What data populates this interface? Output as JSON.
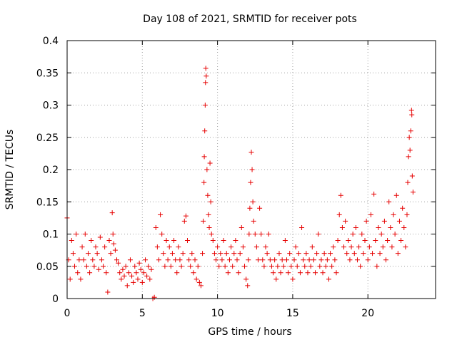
{
  "chart_data": {
    "type": "scatter",
    "title": "Day 108 of 2021, SRMTID for receiver pots",
    "xlabel": "GPS time / hours",
    "ylabel": "SRMTID / TECUs",
    "xlim": [
      0,
      24.5
    ],
    "ylim": [
      0,
      0.4
    ],
    "x_ticks": [
      0,
      5,
      10,
      15,
      20
    ],
    "x_tick_labels": [
      "0",
      "5",
      "10",
      "15",
      "20"
    ],
    "y_ticks": [
      0,
      0.05,
      0.1,
      0.15,
      0.2,
      0.25,
      0.3,
      0.35,
      0.4
    ],
    "y_tick_labels": [
      "0",
      "0.05",
      "0.1",
      "0.15",
      "0.2",
      "0.25",
      "0.3",
      "0.35",
      "0.4"
    ],
    "grid": true,
    "marker": "plus",
    "color": "#e60000",
    "series": [
      {
        "points": [
          [
            0.0,
            0.125
          ],
          [
            0.1,
            0.06
          ],
          [
            0.2,
            0.03
          ],
          [
            0.3,
            0.09
          ],
          [
            0.4,
            0.07
          ],
          [
            0.5,
            0.05
          ],
          [
            0.6,
            0.1
          ],
          [
            0.7,
            0.04
          ],
          [
            0.8,
            0.06
          ],
          [
            0.9,
            0.03
          ],
          [
            1.0,
            0.08
          ],
          [
            1.1,
            0.06
          ],
          [
            1.2,
            0.1
          ],
          [
            1.3,
            0.05
          ],
          [
            1.4,
            0.07
          ],
          [
            1.5,
            0.04
          ],
          [
            1.6,
            0.09
          ],
          [
            1.7,
            0.06
          ],
          [
            1.8,
            0.05
          ],
          [
            1.9,
            0.08
          ],
          [
            2.0,
            0.07
          ],
          [
            2.1,
            0.045
          ],
          [
            2.2,
            0.095
          ],
          [
            2.3,
            0.06
          ],
          [
            2.4,
            0.05
          ],
          [
            2.5,
            0.08
          ],
          [
            2.6,
            0.04
          ],
          [
            2.7,
            0.01
          ],
          [
            2.8,
            0.09
          ],
          [
            2.9,
            0.07
          ],
          [
            3.0,
            0.133
          ],
          [
            3.05,
            0.1
          ],
          [
            3.1,
            0.085
          ],
          [
            3.2,
            0.075
          ],
          [
            3.3,
            0.06
          ],
          [
            3.4,
            0.055
          ],
          [
            3.5,
            0.04
          ],
          [
            3.6,
            0.03
          ],
          [
            3.7,
            0.045
          ],
          [
            3.8,
            0.035
          ],
          [
            3.9,
            0.05
          ],
          [
            4.0,
            0.02
          ],
          [
            4.1,
            0.04
          ],
          [
            4.2,
            0.06
          ],
          [
            4.3,
            0.035
          ],
          [
            4.4,
            0.025
          ],
          [
            4.5,
            0.05
          ],
          [
            4.6,
            0.04
          ],
          [
            4.7,
            0.03
          ],
          [
            4.8,
            0.055
          ],
          [
            4.9,
            0.045
          ],
          [
            5.0,
            0.025
          ],
          [
            5.1,
            0.04
          ],
          [
            5.2,
            0.06
          ],
          [
            5.3,
            0.035
          ],
          [
            5.4,
            0.05
          ],
          [
            5.5,
            0.03
          ],
          [
            5.6,
            0.045
          ],
          [
            5.7,
            0.0
          ],
          [
            5.8,
            0.002
          ],
          [
            5.9,
            0.11
          ],
          [
            6.0,
            0.08
          ],
          [
            6.1,
            0.06
          ],
          [
            6.2,
            0.13
          ],
          [
            6.3,
            0.1
          ],
          [
            6.4,
            0.07
          ],
          [
            6.5,
            0.05
          ],
          [
            6.6,
            0.09
          ],
          [
            6.7,
            0.06
          ],
          [
            6.8,
            0.08
          ],
          [
            6.9,
            0.05
          ],
          [
            7.0,
            0.07
          ],
          [
            7.1,
            0.09
          ],
          [
            7.2,
            0.06
          ],
          [
            7.3,
            0.04
          ],
          [
            7.4,
            0.08
          ],
          [
            7.5,
            0.06
          ],
          [
            7.6,
            0.05
          ],
          [
            7.7,
            0.07
          ],
          [
            7.8,
            0.12
          ],
          [
            7.9,
            0.128
          ],
          [
            8.0,
            0.09
          ],
          [
            8.1,
            0.06
          ],
          [
            8.2,
            0.05
          ],
          [
            8.3,
            0.07
          ],
          [
            8.4,
            0.04
          ],
          [
            8.5,
            0.06
          ],
          [
            8.6,
            0.03
          ],
          [
            8.7,
            0.05
          ],
          [
            8.8,
            0.025
          ],
          [
            8.9,
            0.02
          ],
          [
            9.0,
            0.07
          ],
          [
            9.05,
            0.12
          ],
          [
            9.1,
            0.18
          ],
          [
            9.12,
            0.22
          ],
          [
            9.15,
            0.26
          ],
          [
            9.18,
            0.3
          ],
          [
            9.2,
            0.335
          ],
          [
            9.22,
            0.357
          ],
          [
            9.25,
            0.345
          ],
          [
            9.3,
            0.2
          ],
          [
            9.35,
            0.16
          ],
          [
            9.4,
            0.13
          ],
          [
            9.45,
            0.11
          ],
          [
            9.5,
            0.21
          ],
          [
            9.55,
            0.15
          ],
          [
            9.6,
            0.1
          ],
          [
            9.7,
            0.09
          ],
          [
            9.8,
            0.07
          ],
          [
            9.9,
            0.06
          ],
          [
            10.0,
            0.08
          ],
          [
            10.1,
            0.05
          ],
          [
            10.2,
            0.07
          ],
          [
            10.3,
            0.06
          ],
          [
            10.4,
            0.09
          ],
          [
            10.5,
            0.05
          ],
          [
            10.6,
            0.07
          ],
          [
            10.7,
            0.04
          ],
          [
            10.8,
            0.06
          ],
          [
            10.9,
            0.08
          ],
          [
            11.0,
            0.05
          ],
          [
            11.1,
            0.07
          ],
          [
            11.2,
            0.09
          ],
          [
            11.3,
            0.06
          ],
          [
            11.4,
            0.04
          ],
          [
            11.5,
            0.07
          ],
          [
            11.6,
            0.11
          ],
          [
            11.7,
            0.08
          ],
          [
            11.8,
            0.05
          ],
          [
            11.9,
            0.03
          ],
          [
            12.0,
            0.02
          ],
          [
            12.05,
            0.06
          ],
          [
            12.1,
            0.1
          ],
          [
            12.15,
            0.14
          ],
          [
            12.2,
            0.18
          ],
          [
            12.25,
            0.227
          ],
          [
            12.3,
            0.2
          ],
          [
            12.35,
            0.15
          ],
          [
            12.4,
            0.12
          ],
          [
            12.5,
            0.1
          ],
          [
            12.6,
            0.08
          ],
          [
            12.7,
            0.06
          ],
          [
            12.8,
            0.14
          ],
          [
            12.9,
            0.1
          ],
          [
            13.0,
            0.06
          ],
          [
            13.1,
            0.05
          ],
          [
            13.2,
            0.08
          ],
          [
            13.3,
            0.07
          ],
          [
            13.4,
            0.1
          ],
          [
            13.5,
            0.06
          ],
          [
            13.6,
            0.05
          ],
          [
            13.7,
            0.04
          ],
          [
            13.8,
            0.06
          ],
          [
            13.9,
            0.03
          ],
          [
            14.0,
            0.05
          ],
          [
            14.1,
            0.07
          ],
          [
            14.2,
            0.04
          ],
          [
            14.3,
            0.06
          ],
          [
            14.4,
            0.05
          ],
          [
            14.5,
            0.09
          ],
          [
            14.6,
            0.06
          ],
          [
            14.7,
            0.04
          ],
          [
            14.8,
            0.07
          ],
          [
            14.9,
            0.05
          ],
          [
            15.0,
            0.03
          ],
          [
            15.1,
            0.06
          ],
          [
            15.2,
            0.08
          ],
          [
            15.3,
            0.05
          ],
          [
            15.4,
            0.07
          ],
          [
            15.5,
            0.04
          ],
          [
            15.6,
            0.11
          ],
          [
            15.7,
            0.06
          ],
          [
            15.8,
            0.05
          ],
          [
            15.9,
            0.07
          ],
          [
            16.0,
            0.04
          ],
          [
            16.1,
            0.06
          ],
          [
            16.2,
            0.05
          ],
          [
            16.3,
            0.08
          ],
          [
            16.4,
            0.06
          ],
          [
            16.5,
            0.04
          ],
          [
            16.6,
            0.07
          ],
          [
            16.7,
            0.1
          ],
          [
            16.8,
            0.05
          ],
          [
            16.9,
            0.06
          ],
          [
            17.0,
            0.04
          ],
          [
            17.1,
            0.07
          ],
          [
            17.2,
            0.05
          ],
          [
            17.3,
            0.06
          ],
          [
            17.4,
            0.03
          ],
          [
            17.5,
            0.07
          ],
          [
            17.6,
            0.05
          ],
          [
            17.7,
            0.08
          ],
          [
            17.8,
            0.06
          ],
          [
            17.9,
            0.04
          ],
          [
            18.0,
            0.09
          ],
          [
            18.1,
            0.13
          ],
          [
            18.2,
            0.16
          ],
          [
            18.3,
            0.11
          ],
          [
            18.4,
            0.08
          ],
          [
            18.5,
            0.12
          ],
          [
            18.6,
            0.07
          ],
          [
            18.7,
            0.09
          ],
          [
            18.8,
            0.06
          ],
          [
            18.9,
            0.08
          ],
          [
            19.0,
            0.1
          ],
          [
            19.1,
            0.07
          ],
          [
            19.2,
            0.11
          ],
          [
            19.3,
            0.06
          ],
          [
            19.4,
            0.08
          ],
          [
            19.5,
            0.05
          ],
          [
            19.6,
            0.1
          ],
          [
            19.7,
            0.07
          ],
          [
            19.8,
            0.09
          ],
          [
            19.9,
            0.12
          ],
          [
            20.0,
            0.06
          ],
          [
            20.1,
            0.08
          ],
          [
            20.2,
            0.13
          ],
          [
            20.3,
            0.07
          ],
          [
            20.4,
            0.162
          ],
          [
            20.5,
            0.09
          ],
          [
            20.6,
            0.05
          ],
          [
            20.7,
            0.11
          ],
          [
            20.8,
            0.07
          ],
          [
            20.9,
            0.1
          ],
          [
            21.0,
            0.08
          ],
          [
            21.1,
            0.12
          ],
          [
            21.2,
            0.06
          ],
          [
            21.3,
            0.09
          ],
          [
            21.4,
            0.15
          ],
          [
            21.5,
            0.11
          ],
          [
            21.6,
            0.08
          ],
          [
            21.7,
            0.13
          ],
          [
            21.8,
            0.1
          ],
          [
            21.9,
            0.16
          ],
          [
            22.0,
            0.07
          ],
          [
            22.1,
            0.12
          ],
          [
            22.2,
            0.09
          ],
          [
            22.3,
            0.14
          ],
          [
            22.4,
            0.11
          ],
          [
            22.5,
            0.08
          ],
          [
            22.6,
            0.13
          ],
          [
            22.65,
            0.18
          ],
          [
            22.7,
            0.22
          ],
          [
            22.75,
            0.25
          ],
          [
            22.8,
            0.23
          ],
          [
            22.85,
            0.26
          ],
          [
            22.9,
            0.292
          ],
          [
            22.92,
            0.285
          ],
          [
            22.95,
            0.19
          ],
          [
            23.0,
            0.165
          ]
        ]
      }
    ]
  }
}
